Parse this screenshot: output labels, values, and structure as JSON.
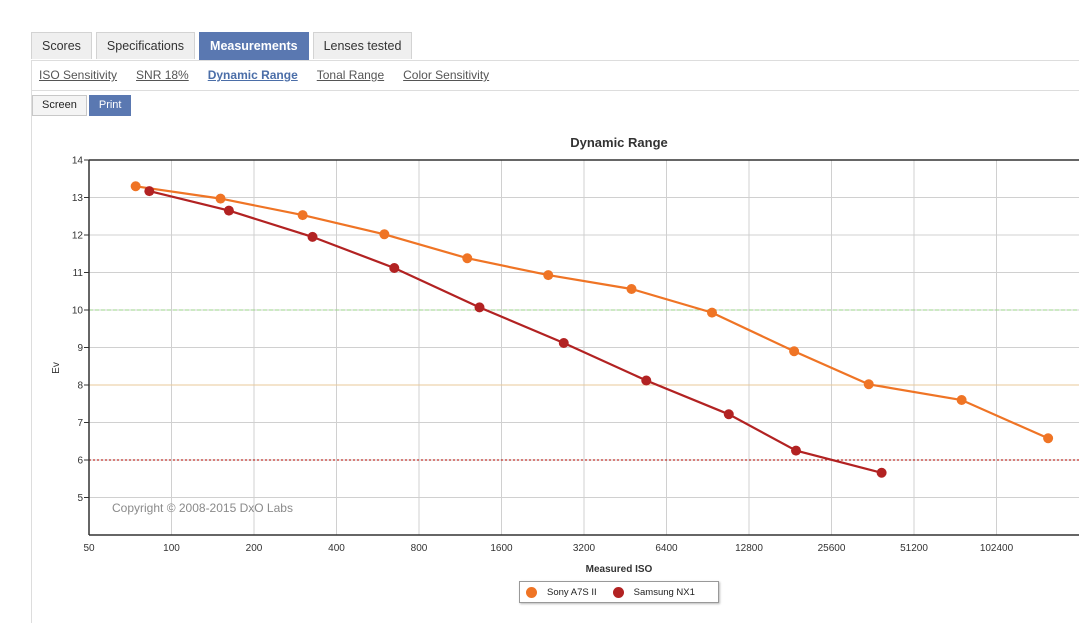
{
  "tabs": [
    "Scores",
    "Specifications",
    "Measurements",
    "Lenses tested"
  ],
  "active_tab": "Measurements",
  "subnav": [
    "ISO Sensitivity",
    "SNR 18%",
    "Dynamic Range",
    "Tonal Range",
    "Color Sensitivity"
  ],
  "active_subnav": "Dynamic Range",
  "modes": [
    "Screen",
    "Print"
  ],
  "active_mode": "Print",
  "copyright": "Copyright © 2008-2015 DxO Labs",
  "chart_data": {
    "type": "line",
    "title": "Dynamic Range",
    "xlabel": "Measured ISO",
    "ylabel": "Ev",
    "x_scale": "log2",
    "xlim": [
      50,
      204800
    ],
    "ylim": [
      4,
      14
    ],
    "x_ticks": [
      "50",
      "100",
      "200",
      "400",
      "800",
      "1600",
      "3200",
      "6400",
      "12800",
      "25600",
      "51200",
      "102400"
    ],
    "y_ticks": [
      "5",
      "6",
      "7",
      "8",
      "9",
      "10",
      "11",
      "12",
      "13",
      "14"
    ],
    "reference_lines": [
      {
        "y": 10,
        "color": "#9bd48a",
        "style": "dashed"
      },
      {
        "y": 8,
        "color": "#e8c99a",
        "style": "solid"
      },
      {
        "y": 6,
        "color": "#c0302b",
        "style": "dotted"
      }
    ],
    "grid": true,
    "legend": "bottom-center",
    "series": [
      {
        "name": "Sony A7S II",
        "color": "#ef7425",
        "points": [
          [
            74,
            13.3
          ],
          [
            151,
            12.97
          ],
          [
            301,
            12.53
          ],
          [
            598,
            12.02
          ],
          [
            1200,
            11.38
          ],
          [
            2370,
            10.93
          ],
          [
            4770,
            10.56
          ],
          [
            9380,
            9.93
          ],
          [
            18700,
            8.9
          ],
          [
            35000,
            8.02
          ],
          [
            76400,
            7.6
          ],
          [
            158000,
            6.58
          ]
        ]
      },
      {
        "name": "Samsung NX1",
        "color": "#b22222",
        "points": [
          [
            83,
            13.17
          ],
          [
            162,
            12.65
          ],
          [
            327,
            11.95
          ],
          [
            650,
            11.12
          ],
          [
            1330,
            10.07
          ],
          [
            2700,
            9.12
          ],
          [
            5400,
            8.12
          ],
          [
            10800,
            7.22
          ],
          [
            19000,
            6.25
          ],
          [
            39000,
            5.66
          ]
        ]
      }
    ]
  }
}
